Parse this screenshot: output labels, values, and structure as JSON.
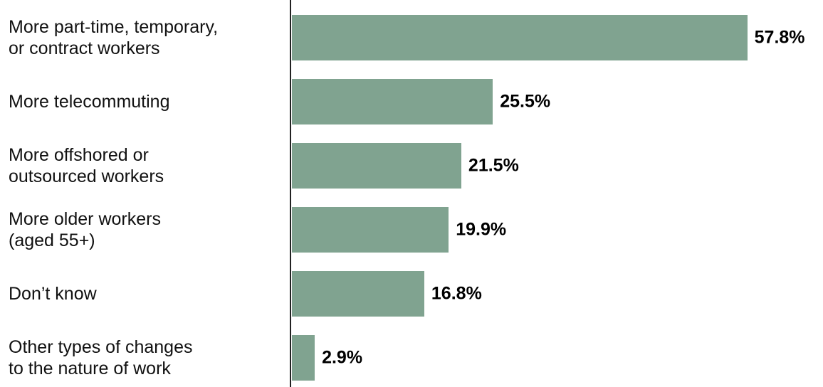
{
  "chart_data": {
    "type": "bar",
    "orientation": "horizontal",
    "categories": [
      "More part-time, temporary,\nor contract workers",
      "More telecommuting",
      "More offshored or\noutsourced workers",
      "More older workers\n(aged 55+)",
      "Don’t know",
      "Other types of changes\nto the nature of work"
    ],
    "values": [
      57.8,
      25.5,
      21.5,
      19.9,
      16.8,
      2.9
    ],
    "value_labels": [
      "57.8%",
      "25.5%",
      "21.5%",
      "19.9%",
      "16.8%",
      "2.9%"
    ],
    "color": "#80a390",
    "xlim": [
      0,
      60
    ]
  }
}
